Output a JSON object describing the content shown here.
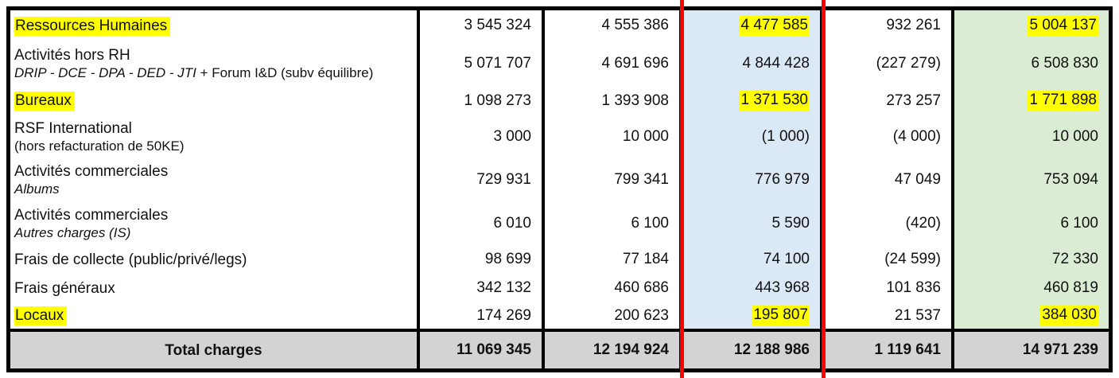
{
  "colors": {
    "highlight_marker": "#ffff00",
    "column_blue_bg": "#dbe8f5",
    "column_green_bg": "#daecd4",
    "total_row_bg": "#d3d3d3",
    "annotation_line": "#ff0000",
    "border": "#000000"
  },
  "table": {
    "rows": [
      {
        "title": "Ressources Humaines",
        "title_highlight": true,
        "values": [
          "3 545 324",
          "4 555 386",
          "4 477 585",
          "932 261",
          "5 004 137"
        ],
        "value_highlights": [
          false,
          false,
          true,
          false,
          true
        ]
      },
      {
        "title": "Activités hors RH",
        "subtitle_italic": "DRIP - DCE - DPA - DED - JTI",
        "subtitle_plain": " + Forum I&D (subv équilibre)",
        "values": [
          "5 071 707",
          "4 691 696",
          "4 844 428",
          "(227 279)",
          "6 508 830"
        ],
        "value_highlights": [
          false,
          false,
          false,
          false,
          false
        ]
      },
      {
        "title": "Bureaux",
        "title_highlight": true,
        "values": [
          "1 098 273",
          "1 393 908",
          "1 371 530",
          "273 257",
          "1 771 898"
        ],
        "value_highlights": [
          false,
          false,
          true,
          false,
          true
        ]
      },
      {
        "title": "RSF International",
        "subtitle_plain": "(hors refacturation de 50KE)",
        "values": [
          "3 000",
          "10 000",
          "(1 000)",
          "(4 000)",
          "10 000"
        ],
        "value_highlights": [
          false,
          false,
          false,
          false,
          false
        ]
      },
      {
        "title": "Activités commerciales",
        "subtitle_italic": "Albums",
        "values": [
          "729 931",
          "799 341",
          "776 979",
          "47 049",
          "753 094"
        ],
        "value_highlights": [
          false,
          false,
          false,
          false,
          false
        ]
      },
      {
        "title": "Activités commerciales",
        "subtitle_italic": "Autres charges (IS)",
        "values": [
          "6 010",
          "6 100",
          "5 590",
          "(420)",
          "6 100"
        ],
        "value_highlights": [
          false,
          false,
          false,
          false,
          false
        ]
      },
      {
        "title": "Frais de collecte (public/privé/legs)",
        "values": [
          "98 699",
          "77 184",
          "74 100",
          "(24 599)",
          "72 330"
        ],
        "value_highlights": [
          false,
          false,
          false,
          false,
          false
        ]
      },
      {
        "title": "Frais généraux",
        "values": [
          "342 132",
          "460 686",
          "443 968",
          "101 836",
          "460 819"
        ],
        "value_highlights": [
          false,
          false,
          false,
          false,
          false
        ]
      },
      {
        "title": "Locaux",
        "title_highlight": true,
        "values": [
          "174 269",
          "200 623",
          "195 807",
          "21 537",
          "384 030"
        ],
        "value_highlights": [
          false,
          false,
          true,
          false,
          true
        ]
      }
    ],
    "total": {
      "label": "Total charges",
      "values": [
        "11 069 345",
        "12 194 924",
        "12 188 986",
        "1 119 641",
        "14 971 239"
      ]
    }
  }
}
